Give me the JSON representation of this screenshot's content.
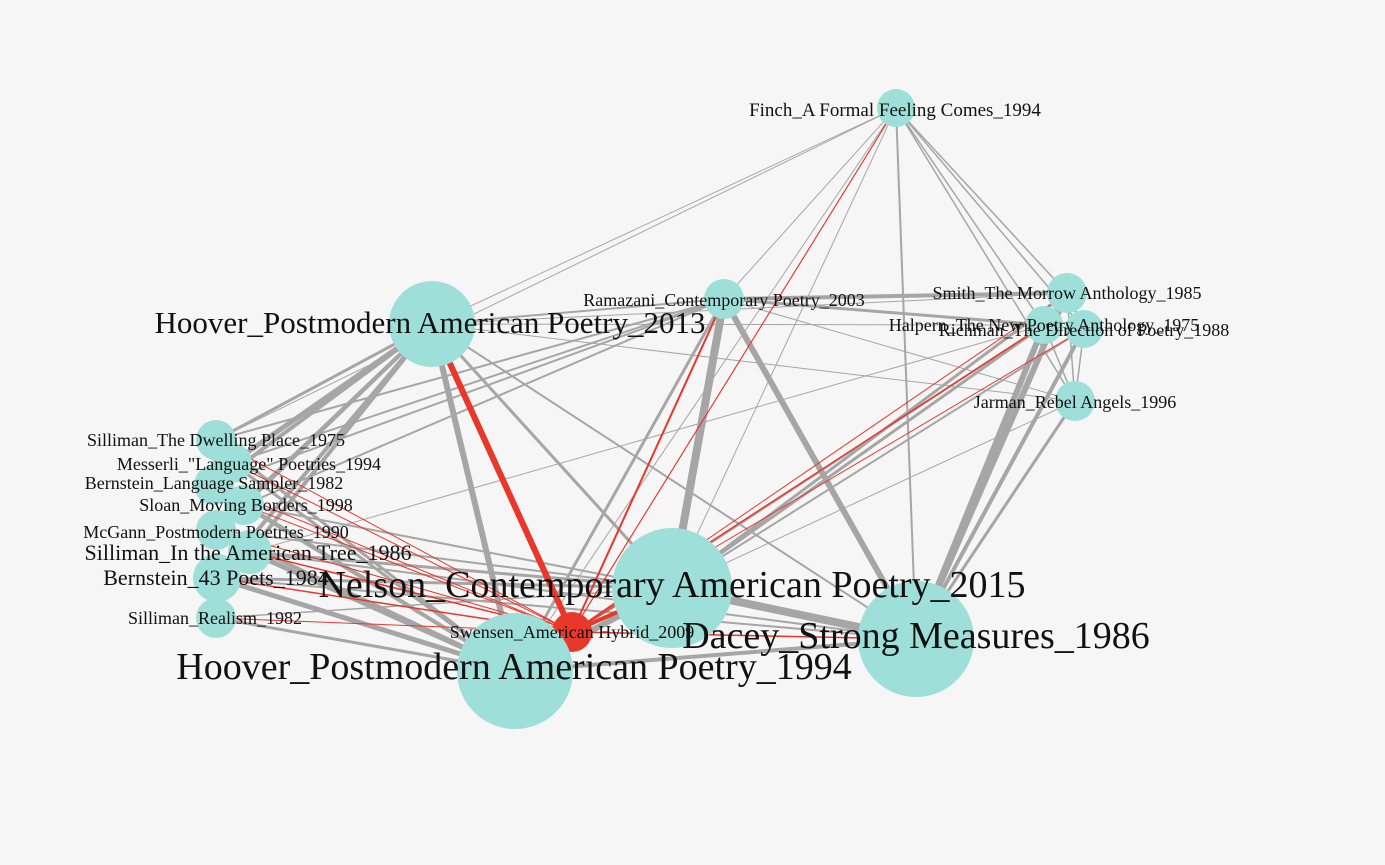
{
  "colors": {
    "background": "#f6f6f6",
    "node": "#9fdfd9",
    "highlight_node": "#e8382c",
    "edge": "#a6a6a6",
    "highlight_edge": "#e8382c",
    "label": "#111111"
  },
  "graph": {
    "highlighted_node": "swensen-2009",
    "nodes": [
      {
        "id": "finch-1994",
        "label": "Finch_A Formal Feeling Comes_1994"
      },
      {
        "id": "ramazani-2003",
        "label": "Ramazani_Contemporary Poetry_2003"
      },
      {
        "id": "hoover-2013",
        "label": "Hoover_Postmodern American Poetry_2013"
      },
      {
        "id": "smith-1985",
        "label": "Smith_The Morrow Anthology_1985"
      },
      {
        "id": "halpern-1975",
        "label": "Halpern_The New Poetry Anthology_1975"
      },
      {
        "id": "richman-1988",
        "label": "Richman_The Direction of Poetry_1988"
      },
      {
        "id": "jarman-1996",
        "label": "Jarman_Rebel Angels_1996"
      },
      {
        "id": "silliman-1975",
        "label": "Silliman_The Dwelling Place_1975"
      },
      {
        "id": "messerli-1994",
        "label": "Messerli_\"Language\" Poetries_1994"
      },
      {
        "id": "bernstein-1982",
        "label": "Bernstein_Language Sampler_1982"
      },
      {
        "id": "sloan-1998",
        "label": "Sloan_Moving Borders_1998"
      },
      {
        "id": "mcgann-1990",
        "label": "McGann_Postmodern Poetries_1990"
      },
      {
        "id": "silliman-1986",
        "label": "Silliman_In the American Tree_1986"
      },
      {
        "id": "bernstein-43",
        "label": "Bernstein_43 Poets_1984"
      },
      {
        "id": "nelson-2015",
        "label": "Nelson_Contemporary American Poetry_2015"
      },
      {
        "id": "silliman-realism",
        "label": "Silliman_Realism_1982"
      },
      {
        "id": "swensen-2009",
        "label": "Swensen_American Hybrid_2009"
      },
      {
        "id": "dacey-1986",
        "label": "Dacey_Strong Measures_1986"
      },
      {
        "id": "hoover-1994",
        "label": "Hoover_Postmodern American Poetry_1994"
      }
    ],
    "edges": [
      {
        "source": "finch-1994",
        "target": "ramazani-2003",
        "weight": 1
      },
      {
        "source": "finch-1994",
        "target": "hoover-2013",
        "weight": 1
      },
      {
        "source": "finch-1994",
        "target": "smith-1985",
        "weight": 1.5
      },
      {
        "source": "finch-1994",
        "target": "halpern-1975",
        "weight": 1.5
      },
      {
        "source": "finch-1994",
        "target": "richman-1988",
        "weight": 1.5
      },
      {
        "source": "finch-1994",
        "target": "jarman-1996",
        "weight": 1.5
      },
      {
        "source": "finch-1994",
        "target": "dacey-1986",
        "weight": 2
      },
      {
        "source": "finch-1994",
        "target": "nelson-2015",
        "weight": 1
      },
      {
        "source": "finch-1994",
        "target": "hoover-1994",
        "weight": 1
      },
      {
        "source": "finch-1994",
        "target": "silliman-1975",
        "weight": 1
      },
      {
        "source": "finch-1994",
        "target": "swensen-2009",
        "weight": 1
      },
      {
        "source": "hoover-2013",
        "target": "ramazani-2003",
        "weight": 2
      },
      {
        "source": "hoover-2013",
        "target": "smith-1985",
        "weight": 1
      },
      {
        "source": "hoover-2013",
        "target": "hoover-1994",
        "weight": 6
      },
      {
        "source": "hoover-2013",
        "target": "nelson-2015",
        "weight": 3
      },
      {
        "source": "hoover-2013",
        "target": "dacey-1986",
        "weight": 2
      },
      {
        "source": "hoover-2013",
        "target": "swensen-2009",
        "weight": 6
      },
      {
        "source": "hoover-2013",
        "target": "silliman-1975",
        "weight": 3
      },
      {
        "source": "hoover-2013",
        "target": "messerli-1994",
        "weight": 5
      },
      {
        "source": "hoover-2013",
        "target": "bernstein-1982",
        "weight": 4
      },
      {
        "source": "hoover-2013",
        "target": "sloan-1998",
        "weight": 4
      },
      {
        "source": "hoover-2013",
        "target": "mcgann-1990",
        "weight": 4
      },
      {
        "source": "hoover-2013",
        "target": "silliman-1986",
        "weight": 4
      },
      {
        "source": "hoover-2013",
        "target": "bernstein-43",
        "weight": 4
      },
      {
        "source": "ramazani-2003",
        "target": "nelson-2015",
        "weight": 8
      },
      {
        "source": "ramazani-2003",
        "target": "dacey-1986",
        "weight": 6
      },
      {
        "source": "ramazani-2003",
        "target": "hoover-1994",
        "weight": 3
      },
      {
        "source": "ramazani-2003",
        "target": "smith-1985",
        "weight": 4
      },
      {
        "source": "ramazani-2003",
        "target": "halpern-1975",
        "weight": 3
      },
      {
        "source": "ramazani-2003",
        "target": "richman-1988",
        "weight": 1
      },
      {
        "source": "ramazani-2003",
        "target": "jarman-1996",
        "weight": 1
      },
      {
        "source": "ramazani-2003",
        "target": "silliman-1975",
        "weight": 2
      },
      {
        "source": "ramazani-2003",
        "target": "messerli-1994",
        "weight": 2
      },
      {
        "source": "ramazani-2003",
        "target": "bernstein-1982",
        "weight": 2
      },
      {
        "source": "ramazani-2003",
        "target": "sloan-1998",
        "weight": 2
      },
      {
        "source": "ramazani-2003",
        "target": "swensen-2009",
        "weight": 2
      },
      {
        "source": "smith-1985",
        "target": "richman-1988",
        "weight": 2
      },
      {
        "source": "smith-1985",
        "target": "halpern-1975",
        "weight": 2
      },
      {
        "source": "smith-1985",
        "target": "jarman-1996",
        "weight": 1.5
      },
      {
        "source": "smith-1985",
        "target": "dacey-1986",
        "weight": 6
      },
      {
        "source": "smith-1985",
        "target": "nelson-2015",
        "weight": 3
      },
      {
        "source": "halpern-1975",
        "target": "dacey-1986",
        "weight": 6
      },
      {
        "source": "halpern-1975",
        "target": "nelson-2015",
        "weight": 3
      },
      {
        "source": "halpern-1975",
        "target": "hoover-1994",
        "weight": 2
      },
      {
        "source": "halpern-1975",
        "target": "jarman-1996",
        "weight": 1.5
      },
      {
        "source": "halpern-1975",
        "target": "silliman-1986",
        "weight": 1
      },
      {
        "source": "halpern-1975",
        "target": "hoover-2013",
        "weight": 1
      },
      {
        "source": "richman-1988",
        "target": "dacey-1986",
        "weight": 4
      },
      {
        "source": "richman-1988",
        "target": "nelson-2015",
        "weight": 2
      },
      {
        "source": "richman-1988",
        "target": "jarman-1996",
        "weight": 1.5
      },
      {
        "source": "jarman-1996",
        "target": "dacey-1986",
        "weight": 3
      },
      {
        "source": "jarman-1996",
        "target": "nelson-2015",
        "weight": 1
      },
      {
        "source": "jarman-1996",
        "target": "hoover-2013",
        "weight": 1
      },
      {
        "source": "nelson-2015",
        "target": "dacey-1986",
        "weight": 8
      },
      {
        "source": "nelson-2015",
        "target": "hoover-1994",
        "weight": 6
      },
      {
        "source": "nelson-2015",
        "target": "swensen-2009",
        "weight": 4
      },
      {
        "source": "nelson-2015",
        "target": "silliman-1986",
        "weight": 3
      },
      {
        "source": "nelson-2015",
        "target": "bernstein-43",
        "weight": 3
      },
      {
        "source": "nelson-2015",
        "target": "mcgann-1990",
        "weight": 2
      },
      {
        "source": "nelson-2015",
        "target": "sloan-1998",
        "weight": 2
      },
      {
        "source": "nelson-2015",
        "target": "silliman-realism",
        "weight": 1.5
      },
      {
        "source": "dacey-1986",
        "target": "hoover-1994",
        "weight": 4
      },
      {
        "source": "dacey-1986",
        "target": "silliman-1986",
        "weight": 2
      },
      {
        "source": "dacey-1986",
        "target": "bernstein-43",
        "weight": 2
      },
      {
        "source": "hoover-1994",
        "target": "silliman-1975",
        "weight": 3
      },
      {
        "source": "hoover-1994",
        "target": "messerli-1994",
        "weight": 3
      },
      {
        "source": "hoover-1994",
        "target": "bernstein-1982",
        "weight": 3
      },
      {
        "source": "hoover-1994",
        "target": "sloan-1998",
        "weight": 4
      },
      {
        "source": "hoover-1994",
        "target": "mcgann-1990",
        "weight": 4
      },
      {
        "source": "hoover-1994",
        "target": "silliman-1986",
        "weight": 5
      },
      {
        "source": "hoover-1994",
        "target": "bernstein-43",
        "weight": 5
      },
      {
        "source": "hoover-1994",
        "target": "silliman-realism",
        "weight": 3
      },
      {
        "source": "silliman-1986",
        "target": "bernstein-43",
        "weight": 2
      },
      {
        "source": "silliman-1986",
        "target": "mcgann-1990",
        "weight": 2
      },
      {
        "source": "messerli-1994",
        "target": "bernstein-1982",
        "weight": 1.5
      },
      {
        "source": "sloan-1998",
        "target": "mcgann-1990",
        "weight": 1.5
      },
      {
        "source": "swensen-2009",
        "target": "hoover-1994",
        "weight": 4
      },
      {
        "source": "swensen-2009",
        "target": "hoover-2013",
        "weight": 6
      },
      {
        "source": "swensen-2009",
        "target": "nelson-2015",
        "weight": 3
      },
      {
        "source": "swensen-2009",
        "target": "dacey-1986",
        "weight": 1.5
      },
      {
        "source": "swensen-2009",
        "target": "ramazani-2003",
        "weight": 1.5
      },
      {
        "source": "swensen-2009",
        "target": "finch-1994",
        "weight": 1
      },
      {
        "source": "swensen-2009",
        "target": "smith-1985",
        "weight": 1
      },
      {
        "source": "swensen-2009",
        "target": "halpern-1975",
        "weight": 1.5
      },
      {
        "source": "swensen-2009",
        "target": "richman-1988",
        "weight": 1
      },
      {
        "source": "swensen-2009",
        "target": "silliman-1986",
        "weight": 1.5
      },
      {
        "source": "swensen-2009",
        "target": "bernstein-43",
        "weight": 1.5
      },
      {
        "source": "swensen-2009",
        "target": "silliman-realism",
        "weight": 1
      },
      {
        "source": "swensen-2009",
        "target": "mcgann-1990",
        "weight": 1
      },
      {
        "source": "swensen-2009",
        "target": "sloan-1998",
        "weight": 1
      },
      {
        "source": "swensen-2009",
        "target": "bernstein-1982",
        "weight": 1
      },
      {
        "source": "swensen-2009",
        "target": "messerli-1994",
        "weight": 1
      },
      {
        "source": "swensen-2009",
        "target": "silliman-1975",
        "weight": 1
      }
    ]
  }
}
